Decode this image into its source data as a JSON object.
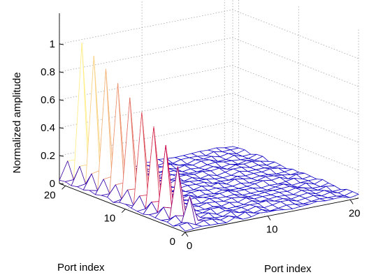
{
  "chart_data": {
    "type": "surface",
    "title": "",
    "zlabel": "Normalized amplitude",
    "xlabel": "Port index",
    "ylabel": "Port index",
    "x_range": [
      0,
      21
    ],
    "y_range": [
      0,
      21
    ],
    "z_range": [
      0,
      1
    ],
    "x_ticks": [
      "0",
      "10",
      "20"
    ],
    "y_ticks": [
      "0",
      "10",
      "20"
    ],
    "z_ticks": [
      "0",
      "0.2",
      "0.4",
      "0.6",
      "0.8",
      "1"
    ],
    "grid": true,
    "mesh_colormap": [
      "#0000cc",
      "#cc0044",
      "#ffee88"
    ],
    "peak_ridge": {
      "port_index_near_axis": [
        0,
        1,
        2,
        3,
        4,
        5,
        6,
        7,
        8,
        9,
        10,
        11,
        12,
        13,
        14,
        15,
        16,
        17,
        18,
        19,
        20,
        21
      ],
      "peak_amplitude": [
        0.02,
        0.1,
        0.2,
        0.3,
        0.38,
        0.45,
        0.5,
        0.55,
        0.6,
        0.63,
        0.67,
        0.7,
        0.74,
        0.77,
        0.81,
        0.84,
        0.88,
        0.91,
        0.94,
        0.97,
        1.0,
        0.98
      ],
      "peak_column": 2,
      "background_amplitude": 0.03
    }
  }
}
